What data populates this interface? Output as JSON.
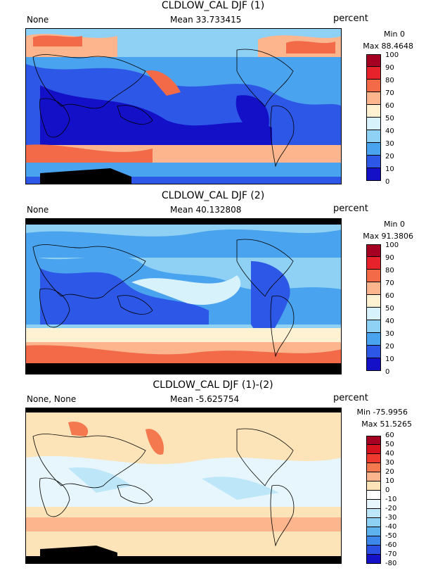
{
  "panels": [
    {
      "title": "CLDLOW_CAL DJF (1)",
      "left_label": "None",
      "mean_label": "Mean 33.733415",
      "units": "percent",
      "min_label": "Min 0",
      "max_label": "Max 88.4648",
      "colorbar": {
        "ticks": [
          "100",
          "90",
          "80",
          "70",
          "60",
          "50",
          "40",
          "30",
          "20",
          "10",
          "0"
        ],
        "colors": [
          "#a50021",
          "#e8222a",
          "#f26a47",
          "#fcb58d",
          "#fff2d2",
          "#d8f2fb",
          "#8fd1f4",
          "#4aa3ee",
          "#2d57e6",
          "#1310c8"
        ]
      }
    },
    {
      "title": "CLDLOW_CAL DJF (2)",
      "left_label": "None",
      "mean_label": "Mean 40.132808",
      "units": "percent",
      "min_label": "Min 0",
      "max_label": "Max 91.3806",
      "colorbar": {
        "ticks": [
          "100",
          "90",
          "80",
          "70",
          "60",
          "50",
          "40",
          "30",
          "20",
          "10",
          "0"
        ],
        "colors": [
          "#a50021",
          "#e8222a",
          "#f26a47",
          "#fcb58d",
          "#fff2d2",
          "#d8f2fb",
          "#8fd1f4",
          "#4aa3ee",
          "#2d57e6",
          "#1310c8"
        ]
      }
    },
    {
      "title": "CLDLOW_CAL DJF (1)-(2)",
      "left_label": "None, None",
      "mean_label": "Mean -5.625754",
      "units": "percent",
      "min_label": "Min -75.9956",
      "max_label": "Max 51.5265",
      "colorbar": {
        "ticks": [
          "60",
          "50",
          "40",
          "30",
          "20",
          "10",
          "0",
          "-10",
          "-20",
          "-30",
          "-40",
          "-50",
          "-60",
          "-70",
          "-80"
        ],
        "colors": [
          "#a50021",
          "#d5121e",
          "#ee3a2f",
          "#f5794f",
          "#fcb58d",
          "#fde3b8",
          "#ffffff",
          "#e6f6fc",
          "#bde7f8",
          "#8fd1f4",
          "#5eb3ef",
          "#3d86ea",
          "#2a4fe2",
          "#1310c8"
        ]
      }
    }
  ]
}
